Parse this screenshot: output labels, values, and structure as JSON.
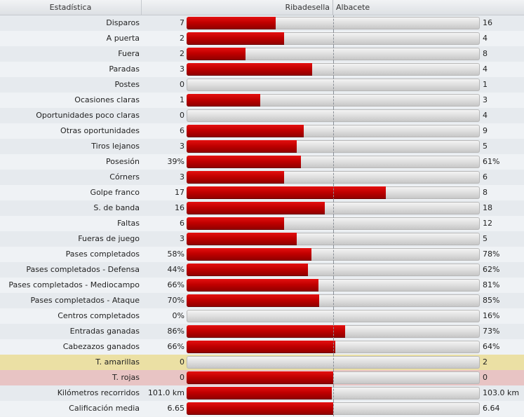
{
  "header": {
    "stat_label": "Estadística",
    "home_team": "Ribadesella",
    "away_team": "Albacete"
  },
  "rows": [
    {
      "label": "Disparos",
      "home": "7",
      "away": "16",
      "home_fraction": 0.304,
      "tone": "odd"
    },
    {
      "label": "A puerta",
      "home": "2",
      "away": "4",
      "home_fraction": 0.333,
      "tone": "even"
    },
    {
      "label": "Fuera",
      "home": "2",
      "away": "8",
      "home_fraction": 0.2,
      "tone": "odd"
    },
    {
      "label": "Paradas",
      "home": "3",
      "away": "4",
      "home_fraction": 0.429,
      "tone": "even"
    },
    {
      "label": "Postes",
      "home": "0",
      "away": "1",
      "home_fraction": 0.0,
      "tone": "odd"
    },
    {
      "label": "Ocasiones claras",
      "home": "1",
      "away": "3",
      "home_fraction": 0.25,
      "tone": "even"
    },
    {
      "label": "Oportunidades poco claras",
      "home": "0",
      "away": "4",
      "home_fraction": 0.0,
      "tone": "odd"
    },
    {
      "label": "Otras oportunidades",
      "home": "6",
      "away": "9",
      "home_fraction": 0.4,
      "tone": "even"
    },
    {
      "label": "Tiros lejanos",
      "home": "3",
      "away": "5",
      "home_fraction": 0.375,
      "tone": "odd"
    },
    {
      "label": "Posesión",
      "home": "39%",
      "away": "61%",
      "home_fraction": 0.39,
      "tone": "even"
    },
    {
      "label": "Córners",
      "home": "3",
      "away": "6",
      "home_fraction": 0.333,
      "tone": "odd"
    },
    {
      "label": "Golpe franco",
      "home": "17",
      "away": "8",
      "home_fraction": 0.68,
      "tone": "even"
    },
    {
      "label": "S. de banda",
      "home": "16",
      "away": "18",
      "home_fraction": 0.471,
      "tone": "odd"
    },
    {
      "label": "Faltas",
      "home": "6",
      "away": "12",
      "home_fraction": 0.333,
      "tone": "even"
    },
    {
      "label": "Fueras de juego",
      "home": "3",
      "away": "5",
      "home_fraction": 0.375,
      "tone": "odd"
    },
    {
      "label": "Pases completados",
      "home": "58%",
      "away": "78%",
      "home_fraction": 0.426,
      "tone": "even"
    },
    {
      "label": "Pases completados - Defensa",
      "home": "44%",
      "away": "62%",
      "home_fraction": 0.415,
      "tone": "odd"
    },
    {
      "label": "Pases completados - Mediocampo",
      "home": "66%",
      "away": "81%",
      "home_fraction": 0.449,
      "tone": "even"
    },
    {
      "label": "Pases completados - Ataque",
      "home": "70%",
      "away": "85%",
      "home_fraction": 0.452,
      "tone": "odd"
    },
    {
      "label": "Centros completados",
      "home": "0%",
      "away": "16%",
      "home_fraction": 0.0,
      "tone": "even"
    },
    {
      "label": "Entradas ganadas",
      "home": "86%",
      "away": "73%",
      "home_fraction": 0.541,
      "tone": "odd"
    },
    {
      "label": "Cabezazos ganados",
      "home": "66%",
      "away": "64%",
      "home_fraction": 0.508,
      "tone": "even"
    },
    {
      "label": "T. amarillas",
      "home": "0",
      "away": "2",
      "home_fraction": 0.0,
      "tone": "yellow"
    },
    {
      "label": "T. rojas",
      "home": "0",
      "away": "0",
      "home_fraction": 0.5,
      "tone": "red"
    },
    {
      "label": "Kilómetros recorridos",
      "home": "101.0 km",
      "away": "103.0 km",
      "home_fraction": 0.495,
      "tone": "odd"
    },
    {
      "label": "Calificación media",
      "home": "6.65",
      "away": "6.64",
      "home_fraction": 0.5,
      "tone": "even"
    }
  ],
  "colors": {
    "bar_fill": "#c00000",
    "bar_track": "#d8d8d8",
    "row_yellow": "#ebe0a4",
    "row_red": "#e8c4c4"
  }
}
